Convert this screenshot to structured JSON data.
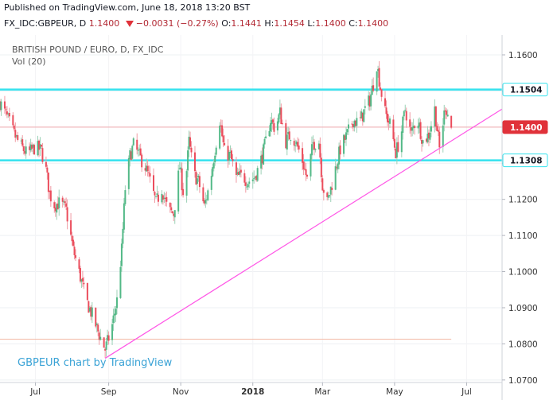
{
  "header": {
    "published": "Published on TradingView.com, June 18, 2018 13:20 BST",
    "symbol": "FX_IDC:GBPEUR, D",
    "last": "1.1400",
    "change": "−0.0031 (−0.27%)",
    "o_label": "O:",
    "o_value": "1.1441",
    "h_label": "H:",
    "h_value": "1.1454",
    "l_label": "L:",
    "l_value": "1.1400",
    "c_label": "C:",
    "c_value": "1.1400"
  },
  "chart_data": {
    "type": "candlestick",
    "title": "BRITISH POUND / EURO, D, FX_IDC",
    "subtitle": "Vol (20)",
    "watermark": "GBPEUR chart by TradingView",
    "x_tick_labels": [
      "Jul",
      "Sep",
      "Nov",
      "2018",
      "Mar",
      "May",
      "Jul"
    ],
    "y_tick_labels": [
      "1.1600",
      "1.1500",
      "1.1400",
      "1.1300",
      "1.1200",
      "1.1100",
      "1.1000",
      "1.0900",
      "1.0800",
      "1.0700"
    ],
    "y_ticks": [
      1.16,
      1.15,
      1.14,
      1.13,
      1.12,
      1.11,
      1.1,
      1.09,
      1.08,
      1.07
    ],
    "ylim": [
      1.0693,
      1.1655
    ],
    "period": [
      "2017-06-01",
      "2018-06-18"
    ],
    "x_range": [
      "2017-06-01",
      "2018-07-31"
    ],
    "horizontal_levels": [
      {
        "value": 1.1504,
        "label": "1.1504",
        "color": "#35e2ee"
      },
      {
        "value": 1.1308,
        "label": "1.1308",
        "color": "#35e2ee"
      }
    ],
    "last_price": {
      "value": 1.14,
      "label": "1.1400",
      "color": "#e0323a"
    },
    "low_marker": {
      "value": 1.0813,
      "color": "#f3b9a5"
    },
    "trendline": {
      "from": {
        "date": "2017-08-29",
        "value": 1.076
      },
      "to": {
        "date": "2018-07-31",
        "value": 1.145
      },
      "color": "#ff55e6"
    },
    "up_color": "#53b987",
    "down_color": "#eb4d5c",
    "series": [
      {
        "date": "2017-06-01",
        "close": 1.1468
      },
      {
        "date": "2017-06-08",
        "close": 1.142
      },
      {
        "date": "2017-06-13",
        "close": 1.138
      },
      {
        "date": "2017-06-18",
        "close": 1.135
      },
      {
        "date": "2017-06-24",
        "close": 1.1325
      },
      {
        "date": "2017-07-01",
        "close": 1.1345
      },
      {
        "date": "2017-07-06",
        "close": 1.1335
      },
      {
        "date": "2017-07-10",
        "close": 1.128
      },
      {
        "date": "2017-07-13",
        "close": 1.1215
      },
      {
        "date": "2017-07-17",
        "close": 1.1185
      },
      {
        "date": "2017-07-22",
        "close": 1.119
      },
      {
        "date": "2017-07-27",
        "close": 1.117
      },
      {
        "date": "2017-08-02",
        "close": 1.106
      },
      {
        "date": "2017-08-08",
        "close": 1.0985
      },
      {
        "date": "2017-08-13",
        "close": 1.092
      },
      {
        "date": "2017-08-18",
        "close": 1.088
      },
      {
        "date": "2017-08-24",
        "close": 1.0825
      },
      {
        "date": "2017-08-29",
        "close": 1.0785
      },
      {
        "date": "2017-09-03",
        "close": 1.0835
      },
      {
        "date": "2017-09-08",
        "close": 1.092
      },
      {
        "date": "2017-09-12",
        "close": 1.106
      },
      {
        "date": "2017-09-15",
        "close": 1.123
      },
      {
        "date": "2017-09-19",
        "close": 1.132
      },
      {
        "date": "2017-09-22",
        "close": 1.135
      },
      {
        "date": "2017-09-27",
        "close": 1.132
      },
      {
        "date": "2017-10-02",
        "close": 1.129
      },
      {
        "date": "2017-10-06",
        "close": 1.125
      },
      {
        "date": "2017-10-11",
        "close": 1.119
      },
      {
        "date": "2017-10-16",
        "close": 1.123
      },
      {
        "date": "2017-10-21",
        "close": 1.117
      },
      {
        "date": "2017-10-26",
        "close": 1.116
      },
      {
        "date": "2017-10-31",
        "close": 1.129
      },
      {
        "date": "2017-11-04",
        "close": 1.12
      },
      {
        "date": "2017-11-08",
        "close": 1.136
      },
      {
        "date": "2017-11-12",
        "close": 1.127
      },
      {
        "date": "2017-11-16",
        "close": 1.125
      },
      {
        "date": "2017-11-21",
        "close": 1.118
      },
      {
        "date": "2017-11-26",
        "close": 1.125
      },
      {
        "date": "2017-12-01",
        "close": 1.136
      },
      {
        "date": "2017-12-04",
        "close": 1.142
      },
      {
        "date": "2017-12-08",
        "close": 1.133
      },
      {
        "date": "2017-12-13",
        "close": 1.132
      },
      {
        "date": "2017-12-18",
        "close": 1.126
      },
      {
        "date": "2017-12-23",
        "close": 1.1265
      },
      {
        "date": "2017-12-28",
        "close": 1.125
      },
      {
        "date": "2018-01-02",
        "close": 1.126
      },
      {
        "date": "2018-01-05",
        "close": 1.128
      },
      {
        "date": "2018-01-09",
        "close": 1.132
      },
      {
        "date": "2018-01-12",
        "close": 1.136
      },
      {
        "date": "2018-01-16",
        "close": 1.142
      },
      {
        "date": "2018-01-20",
        "close": 1.1395
      },
      {
        "date": "2018-01-24",
        "close": 1.144
      },
      {
        "date": "2018-01-29",
        "close": 1.136
      },
      {
        "date": "2018-02-02",
        "close": 1.138
      },
      {
        "date": "2018-02-06",
        "close": 1.136
      },
      {
        "date": "2018-02-11",
        "close": 1.132
      },
      {
        "date": "2018-02-16",
        "close": 1.1255
      },
      {
        "date": "2018-02-21",
        "close": 1.1355
      },
      {
        "date": "2018-02-26",
        "close": 1.136
      },
      {
        "date": "2018-03-01",
        "close": 1.124
      },
      {
        "date": "2018-03-05",
        "close": 1.119
      },
      {
        "date": "2018-03-08",
        "close": 1.123
      },
      {
        "date": "2018-03-11",
        "close": 1.127
      },
      {
        "date": "2018-03-16",
        "close": 1.134
      },
      {
        "date": "2018-03-22",
        "close": 1.138
      },
      {
        "date": "2018-03-27",
        "close": 1.142
      },
      {
        "date": "2018-04-01",
        "close": 1.141
      },
      {
        "date": "2018-04-06",
        "close": 1.145
      },
      {
        "date": "2018-04-10",
        "close": 1.1475
      },
      {
        "date": "2018-04-13",
        "close": 1.152
      },
      {
        "date": "2018-04-16",
        "close": 1.1575
      },
      {
        "date": "2018-04-19",
        "close": 1.151
      },
      {
        "date": "2018-04-23",
        "close": 1.144
      },
      {
        "date": "2018-04-28",
        "close": 1.14
      },
      {
        "date": "2018-05-02",
        "close": 1.133
      },
      {
        "date": "2018-05-06",
        "close": 1.137
      },
      {
        "date": "2018-05-10",
        "close": 1.145
      },
      {
        "date": "2018-05-15",
        "close": 1.138
      },
      {
        "date": "2018-05-20",
        "close": 1.143
      },
      {
        "date": "2018-05-25",
        "close": 1.136
      },
      {
        "date": "2018-05-30",
        "close": 1.138
      },
      {
        "date": "2018-06-04",
        "close": 1.145
      },
      {
        "date": "2018-06-08",
        "close": 1.134
      },
      {
        "date": "2018-06-13",
        "close": 1.146
      },
      {
        "date": "2018-06-18",
        "close": 1.14
      }
    ]
  }
}
